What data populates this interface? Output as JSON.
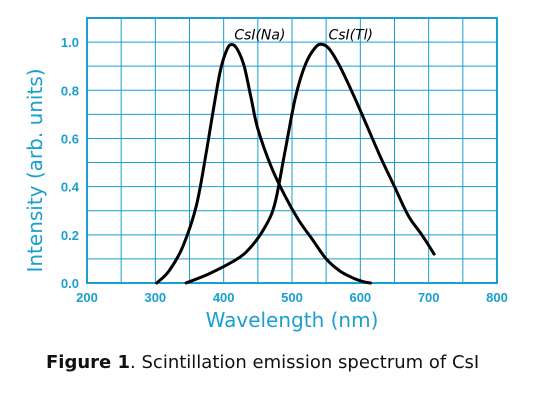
{
  "colors": {
    "axis": "#1a9fd0",
    "grid": "#1a9fd0",
    "series": "#000000"
  },
  "caption": {
    "bold": "Figure 1",
    "text": ". Scintillation emission spectrum of CsI"
  },
  "chart_data": {
    "type": "line",
    "title": "",
    "xlabel": "Wavelength (nm)",
    "ylabel": "Intensity (arb. units)",
    "xlim": [
      200,
      800
    ],
    "ylim": [
      0.0,
      1.1
    ],
    "x_ticks": [
      200,
      300,
      400,
      500,
      600,
      700,
      800
    ],
    "x_tick_labels": [
      "200",
      "300",
      "400",
      "500",
      "600",
      "700",
      "800"
    ],
    "y_ticks": [
      0.0,
      0.2,
      0.4,
      0.6,
      0.8,
      1.0
    ],
    "y_tick_labels": [
      "0.0",
      "0.2",
      "0.4",
      "0.6",
      "0.8",
      "1.0"
    ],
    "grid": true,
    "series": [
      {
        "name": "CsI(Na)",
        "x": [
          302,
          320,
          340,
          360,
          375,
          385,
          395,
          405,
          412,
          420,
          430,
          440,
          450,
          470,
          490,
          510,
          530,
          550,
          570,
          590,
          605,
          615
        ],
        "y": [
          0.0,
          0.05,
          0.15,
          0.32,
          0.55,
          0.72,
          0.88,
          0.97,
          0.99,
          0.97,
          0.9,
          0.77,
          0.64,
          0.48,
          0.36,
          0.26,
          0.18,
          0.1,
          0.05,
          0.02,
          0.005,
          0.0
        ]
      },
      {
        "name": "CsI(Tl)",
        "x": [
          345,
          380,
          420,
          440,
          460,
          475,
          490,
          505,
          520,
          535,
          545,
          555,
          570,
          590,
          610,
          630,
          650,
          670,
          690,
          708
        ],
        "y": [
          0.0,
          0.04,
          0.1,
          0.15,
          0.23,
          0.33,
          0.55,
          0.77,
          0.91,
          0.98,
          0.99,
          0.97,
          0.9,
          0.78,
          0.65,
          0.52,
          0.4,
          0.28,
          0.2,
          0.12
        ]
      }
    ]
  }
}
